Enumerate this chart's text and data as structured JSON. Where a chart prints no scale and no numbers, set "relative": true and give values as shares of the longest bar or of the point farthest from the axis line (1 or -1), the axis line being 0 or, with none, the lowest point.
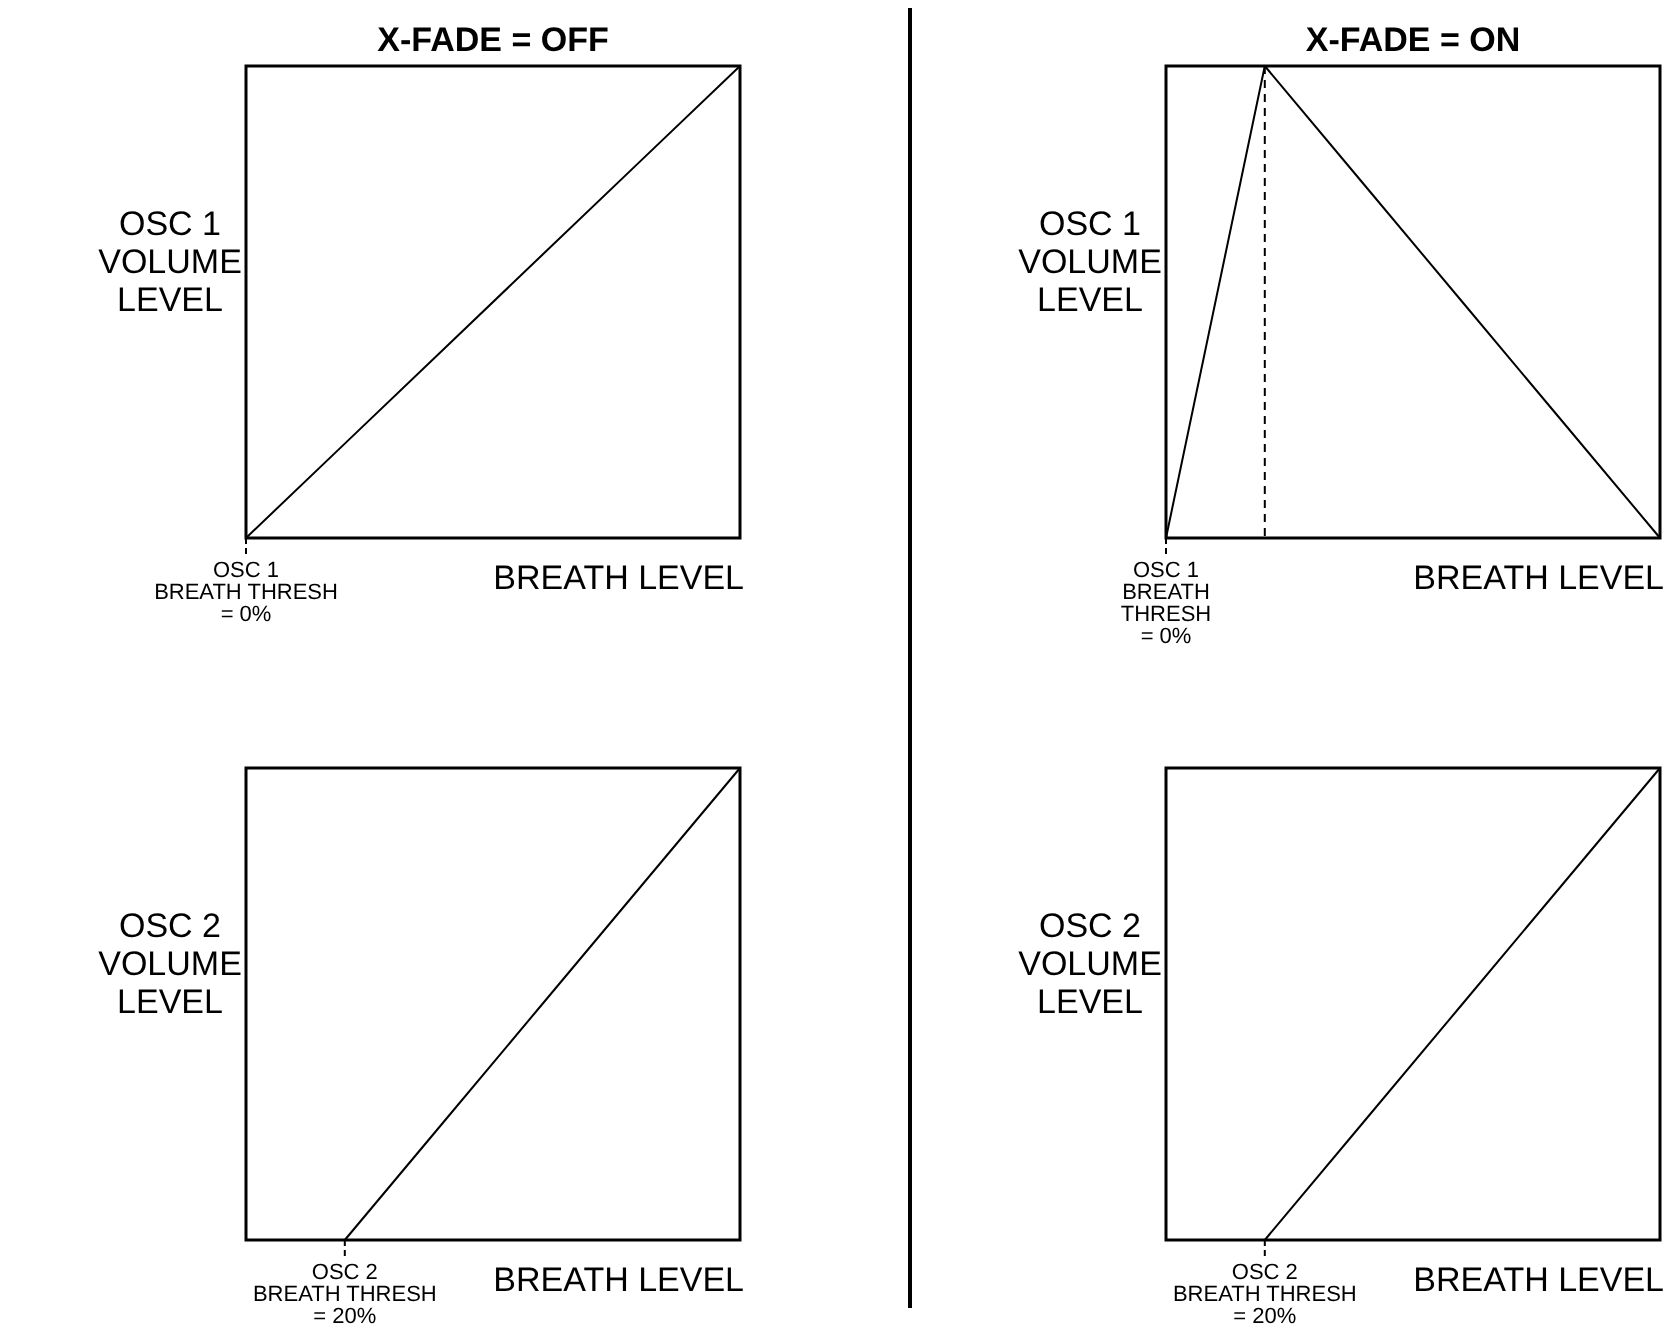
{
  "chart_data": [
    {
      "type": "line",
      "title": "X-FADE = OFF",
      "ylabel": "OSC 1\nVOLUME\nLEVEL",
      "xlabel": "BREATH LEVEL",
      "relative": true,
      "categories": [
        null,
        null,
        null,
        null,
        null,
        null
      ],
      "values": [
        0,
        0.2,
        0.4,
        0.6,
        0.8,
        1
      ],
      "color": "#000000",
      "marker": "none",
      "annotations": [
        "OSC 1\nBREATH THRESH\n= 0%"
      ]
    },
    {
      "type": "line",
      "title": "X-FADE = ON",
      "ylabel": "OSC 1\nVOLUME\nLEVEL",
      "xlabel": "BREATH LEVEL",
      "relative": true,
      "categories": [
        null,
        null,
        null,
        null,
        null,
        null
      ],
      "values": [
        0,
        1,
        0.75,
        0.5,
        0.25,
        0
      ],
      "color": "#000000",
      "marker": "none",
      "annotations": [
        "OSC 1\nBREATH\nTHRESH\n= 0%"
      ]
    },
    {
      "type": "line",
      "ylabel": "OSC 2\nVOLUME\nLEVEL",
      "xlabel": "BREATH LEVEL",
      "relative": true,
      "categories": [
        null,
        null,
        null,
        null,
        null,
        null
      ],
      "values": [
        null,
        0,
        0.25,
        0.5,
        0.75,
        1
      ],
      "color": "#000000",
      "marker": "none",
      "annotations": [
        "OSC 2\nBREATH THRESH\n= 20%"
      ]
    },
    {
      "type": "line",
      "ylabel": "OSC 2\nVOLUME\nLEVEL",
      "xlabel": "BREATH LEVEL",
      "relative": true,
      "categories": [
        null,
        null,
        null,
        null,
        null,
        null
      ],
      "values": [
        null,
        0,
        0.25,
        0.5,
        0.75,
        1
      ],
      "color": "#000000",
      "marker": "none",
      "annotations": [
        "OSC 2\nBREATH THRESH\n= 20%"
      ]
    }
  ]
}
